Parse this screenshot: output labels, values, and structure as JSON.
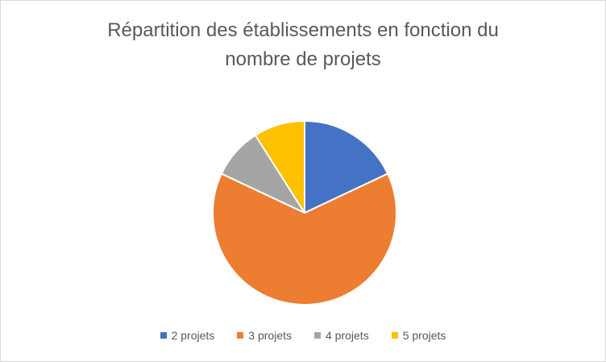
{
  "chart_data": {
    "type": "pie",
    "title_lines": [
      "Répartition des établissements en fonction du",
      "nombre de projets"
    ],
    "categories": [
      "2 projets",
      "3 projets",
      "4 projets",
      "5 projets"
    ],
    "values": [
      18,
      64,
      9,
      9
    ],
    "colors": [
      "#4472C4",
      "#ED7D31",
      "#A5A5A5",
      "#FFC000"
    ],
    "legend": "bottom"
  }
}
